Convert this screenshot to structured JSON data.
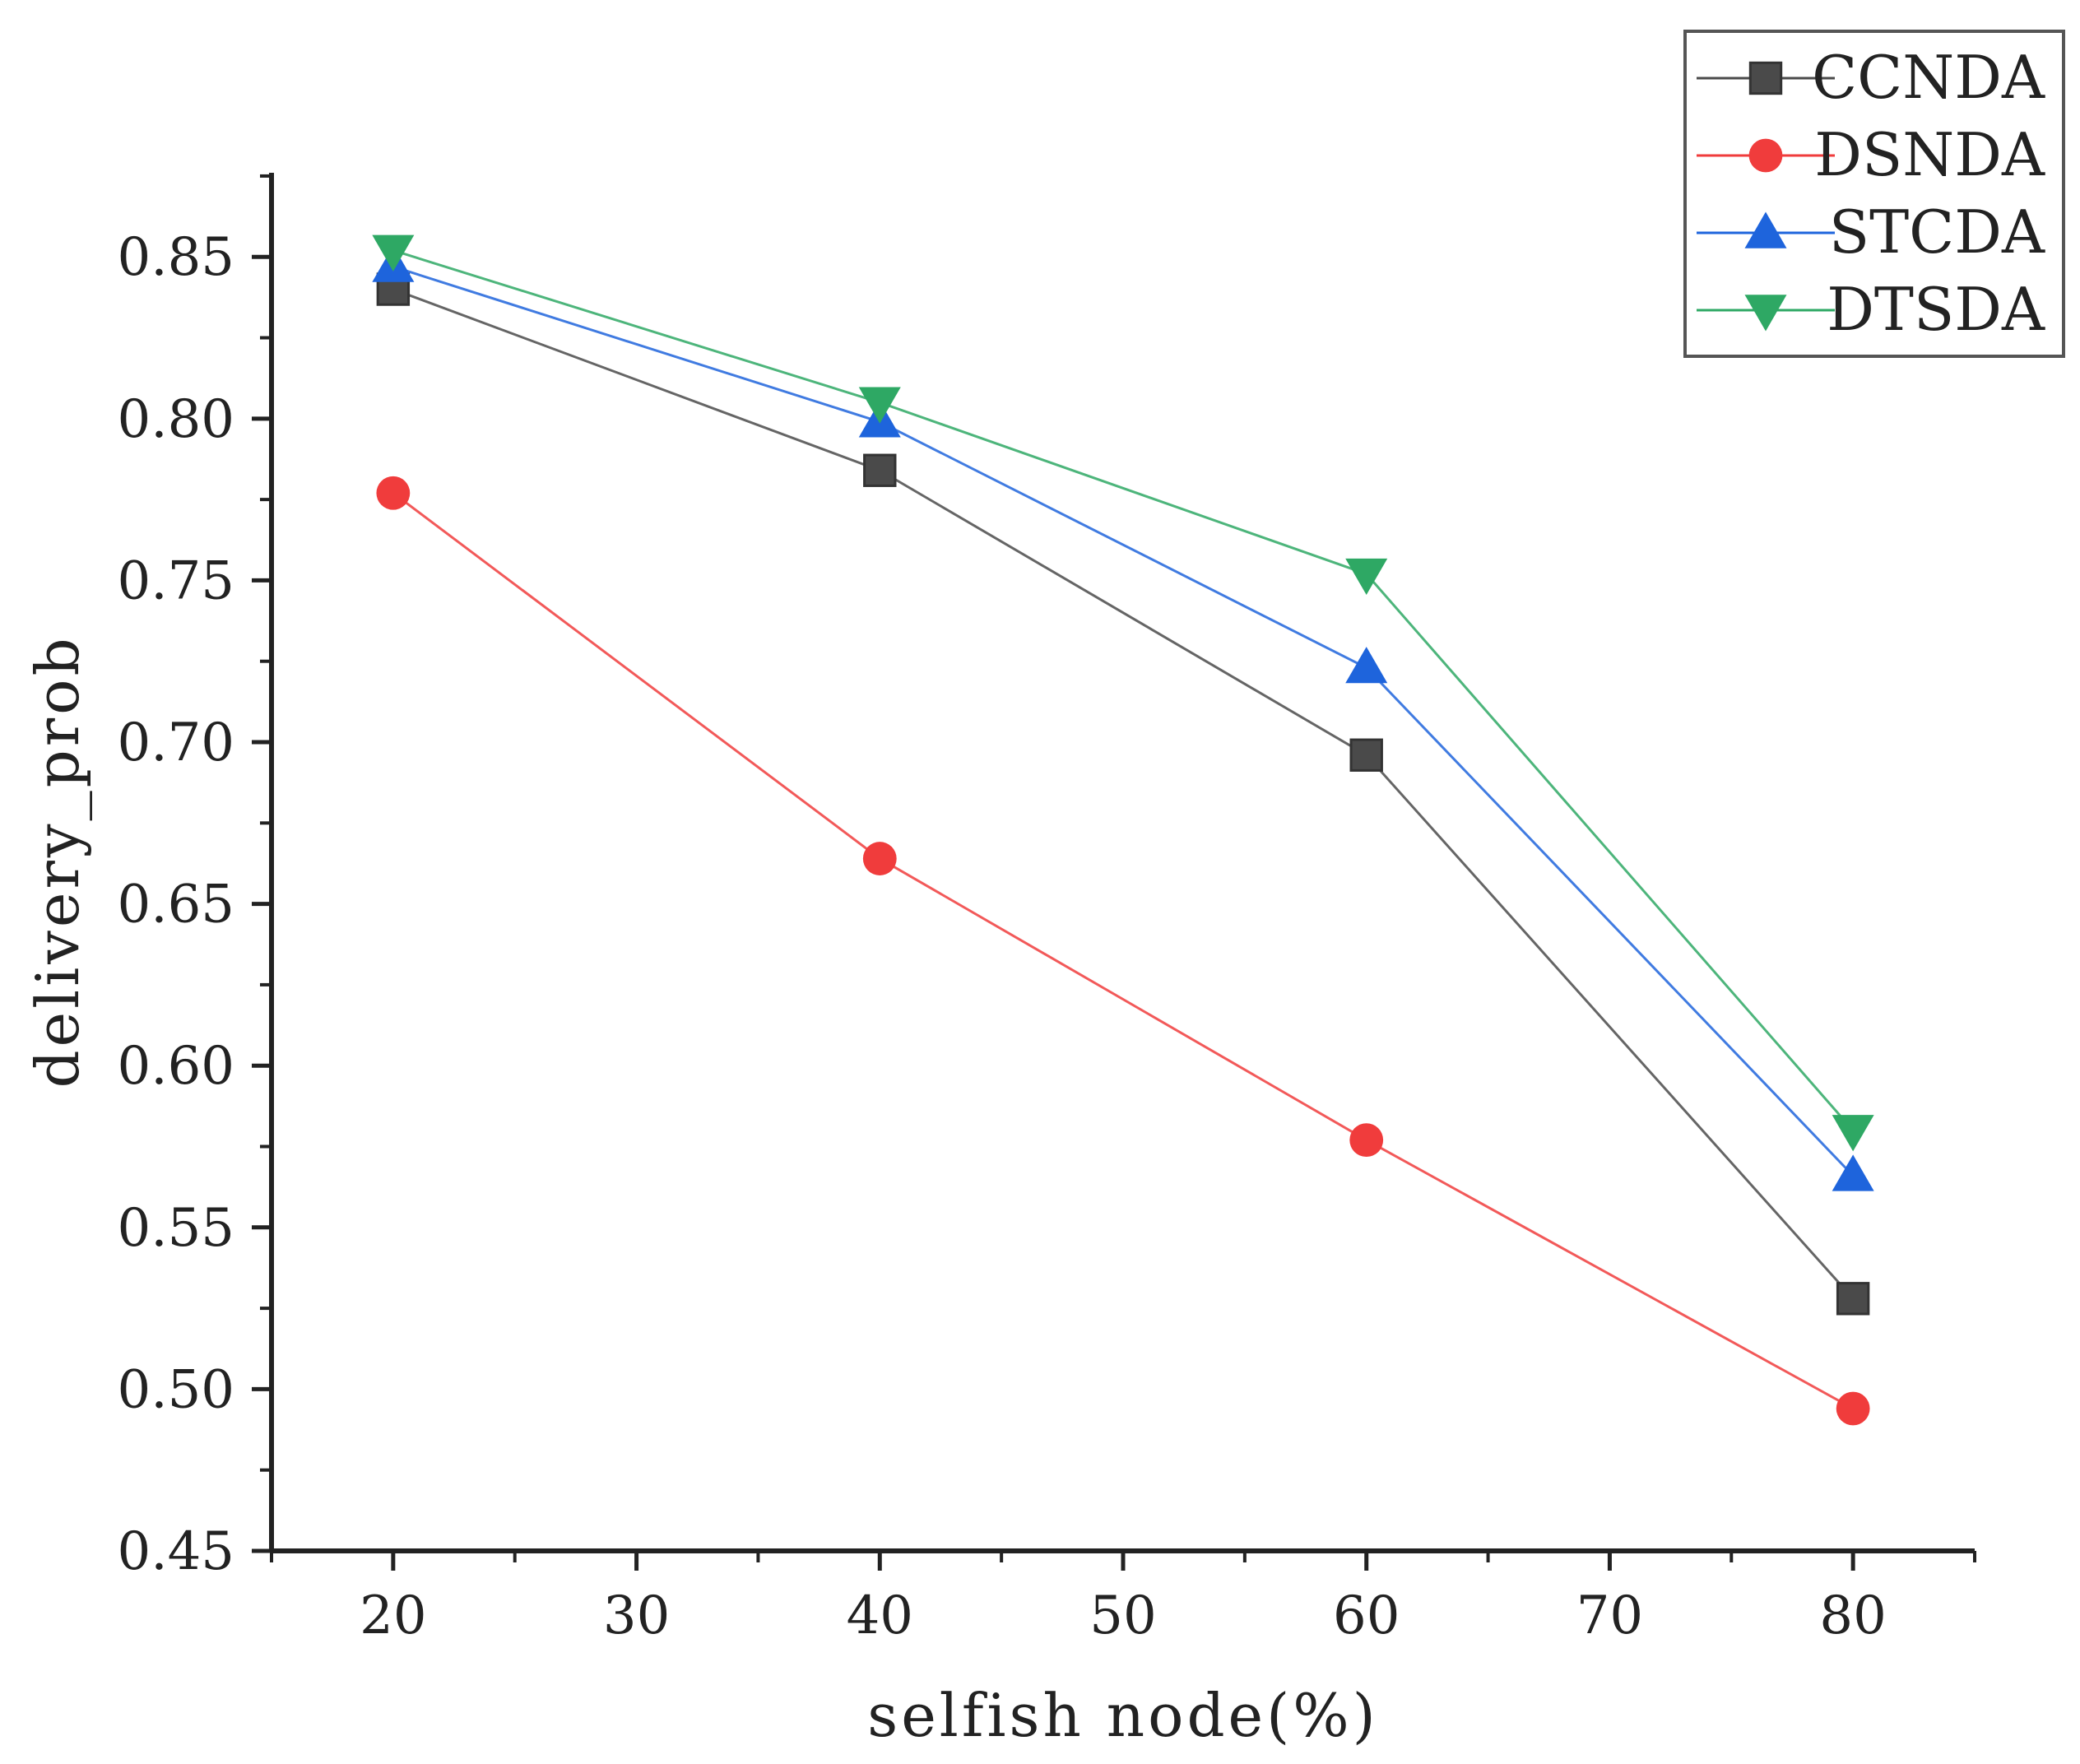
{
  "chart_data": {
    "type": "line",
    "title": "",
    "xlabel": "selfish node(%)",
    "ylabel": "delivery_prob",
    "xlim": [
      15,
      85
    ],
    "ylim": [
      0.45,
      0.876
    ],
    "xticks": [
      20,
      30,
      40,
      50,
      60,
      70,
      80
    ],
    "xtick_labels": [
      "20",
      "30",
      "40",
      "50",
      "60",
      "70",
      "80"
    ],
    "yticks": [
      0.45,
      0.5,
      0.55,
      0.6,
      0.65,
      0.7,
      0.75,
      0.8,
      0.85
    ],
    "ytick_labels": [
      "0.45",
      "0.50",
      "0.55",
      "0.60",
      "0.65",
      "0.70",
      "0.75",
      "0.80",
      "0.85"
    ],
    "grid": false,
    "legend_position": "top-right",
    "x": [
      20,
      40,
      60,
      80
    ],
    "series": [
      {
        "name": "CCNDA",
        "color": "#4a4a4a",
        "marker": "square",
        "values": [
          0.84,
          0.784,
          0.696,
          0.528
        ]
      },
      {
        "name": "DSNDA",
        "color": "#f03c3c",
        "marker": "circle",
        "values": [
          0.777,
          0.664,
          0.577,
          0.494
        ]
      },
      {
        "name": "STCDA",
        "color": "#1e64dc",
        "marker": "triangle-up",
        "values": [
          0.847,
          0.799,
          0.723,
          0.566
        ]
      },
      {
        "name": "DTSDA",
        "color": "#2ea864",
        "marker": "triangle-down",
        "values": [
          0.852,
          0.805,
          0.752,
          0.58
        ]
      }
    ]
  }
}
